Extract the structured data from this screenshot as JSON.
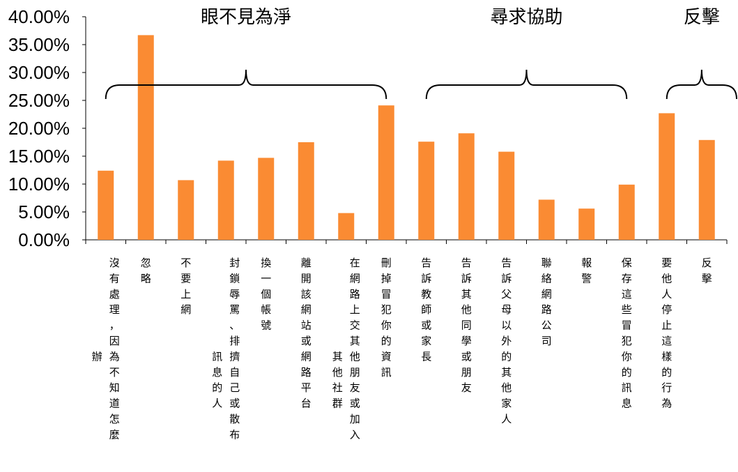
{
  "chart_data": {
    "type": "bar",
    "categories": [
      "沒有處理，因為不知道怎麼辦",
      "忽略",
      "不要上網",
      "封鎖辱罵、排擠自己或散布訊息的人",
      "換一個帳號",
      "離開該網站或網路平台",
      "在網路上交其他朋友或加入其他社群",
      "刪掉冒犯你的資訊",
      "告訴教師或家長",
      "告訴其他同學或朋友",
      "告訴父母以外的其他家人",
      "聯絡網路公司",
      "報警",
      "保存這些冒犯你的訊息",
      "要他人停止這樣的行為",
      "反擊"
    ],
    "label_columns": [
      [
        "沒有處理，因為不知道怎麼",
        "辦"
      ],
      [
        "忽略"
      ],
      [
        "不要上網"
      ],
      [
        "封鎖辱罵、排擠自己或散布",
        "訊息的人"
      ],
      [
        "換一個帳號"
      ],
      [
        "離開該網站或網路平台"
      ],
      [
        "在網路上交其他朋友或加入",
        "其他社群"
      ],
      [
        "刪掉冒犯你的資訊"
      ],
      [
        "告訴教師或家長"
      ],
      [
        "告訴其他同學或朋友"
      ],
      [
        "告訴父母以外的其他家人"
      ],
      [
        "聯絡網路公司"
      ],
      [
        "報警"
      ],
      [
        "保存這些冒犯你的訊息"
      ],
      [
        "要他人停止這樣的行為"
      ],
      [
        "反擊"
      ]
    ],
    "values": [
      12.4,
      36.7,
      10.7,
      14.2,
      14.7,
      17.5,
      4.8,
      24.1,
      17.6,
      19.1,
      15.8,
      7.2,
      5.6,
      9.9,
      22.7,
      17.9
    ],
    "yticks": [
      "0.00%",
      "5.00%",
      "10.00%",
      "15.00%",
      "20.00%",
      "25.00%",
      "30.00%",
      "35.00%",
      "40.00%"
    ],
    "ylim": [
      0,
      40
    ],
    "bar_color": "#fa8b33",
    "grid": false,
    "groups": [
      {
        "label": "眼不見為淨",
        "first": 0,
        "last": 7
      },
      {
        "label": "尋求協助",
        "first": 8,
        "last": 13
      },
      {
        "label": "反擊",
        "first": 14,
        "last": 15
      }
    ]
  }
}
